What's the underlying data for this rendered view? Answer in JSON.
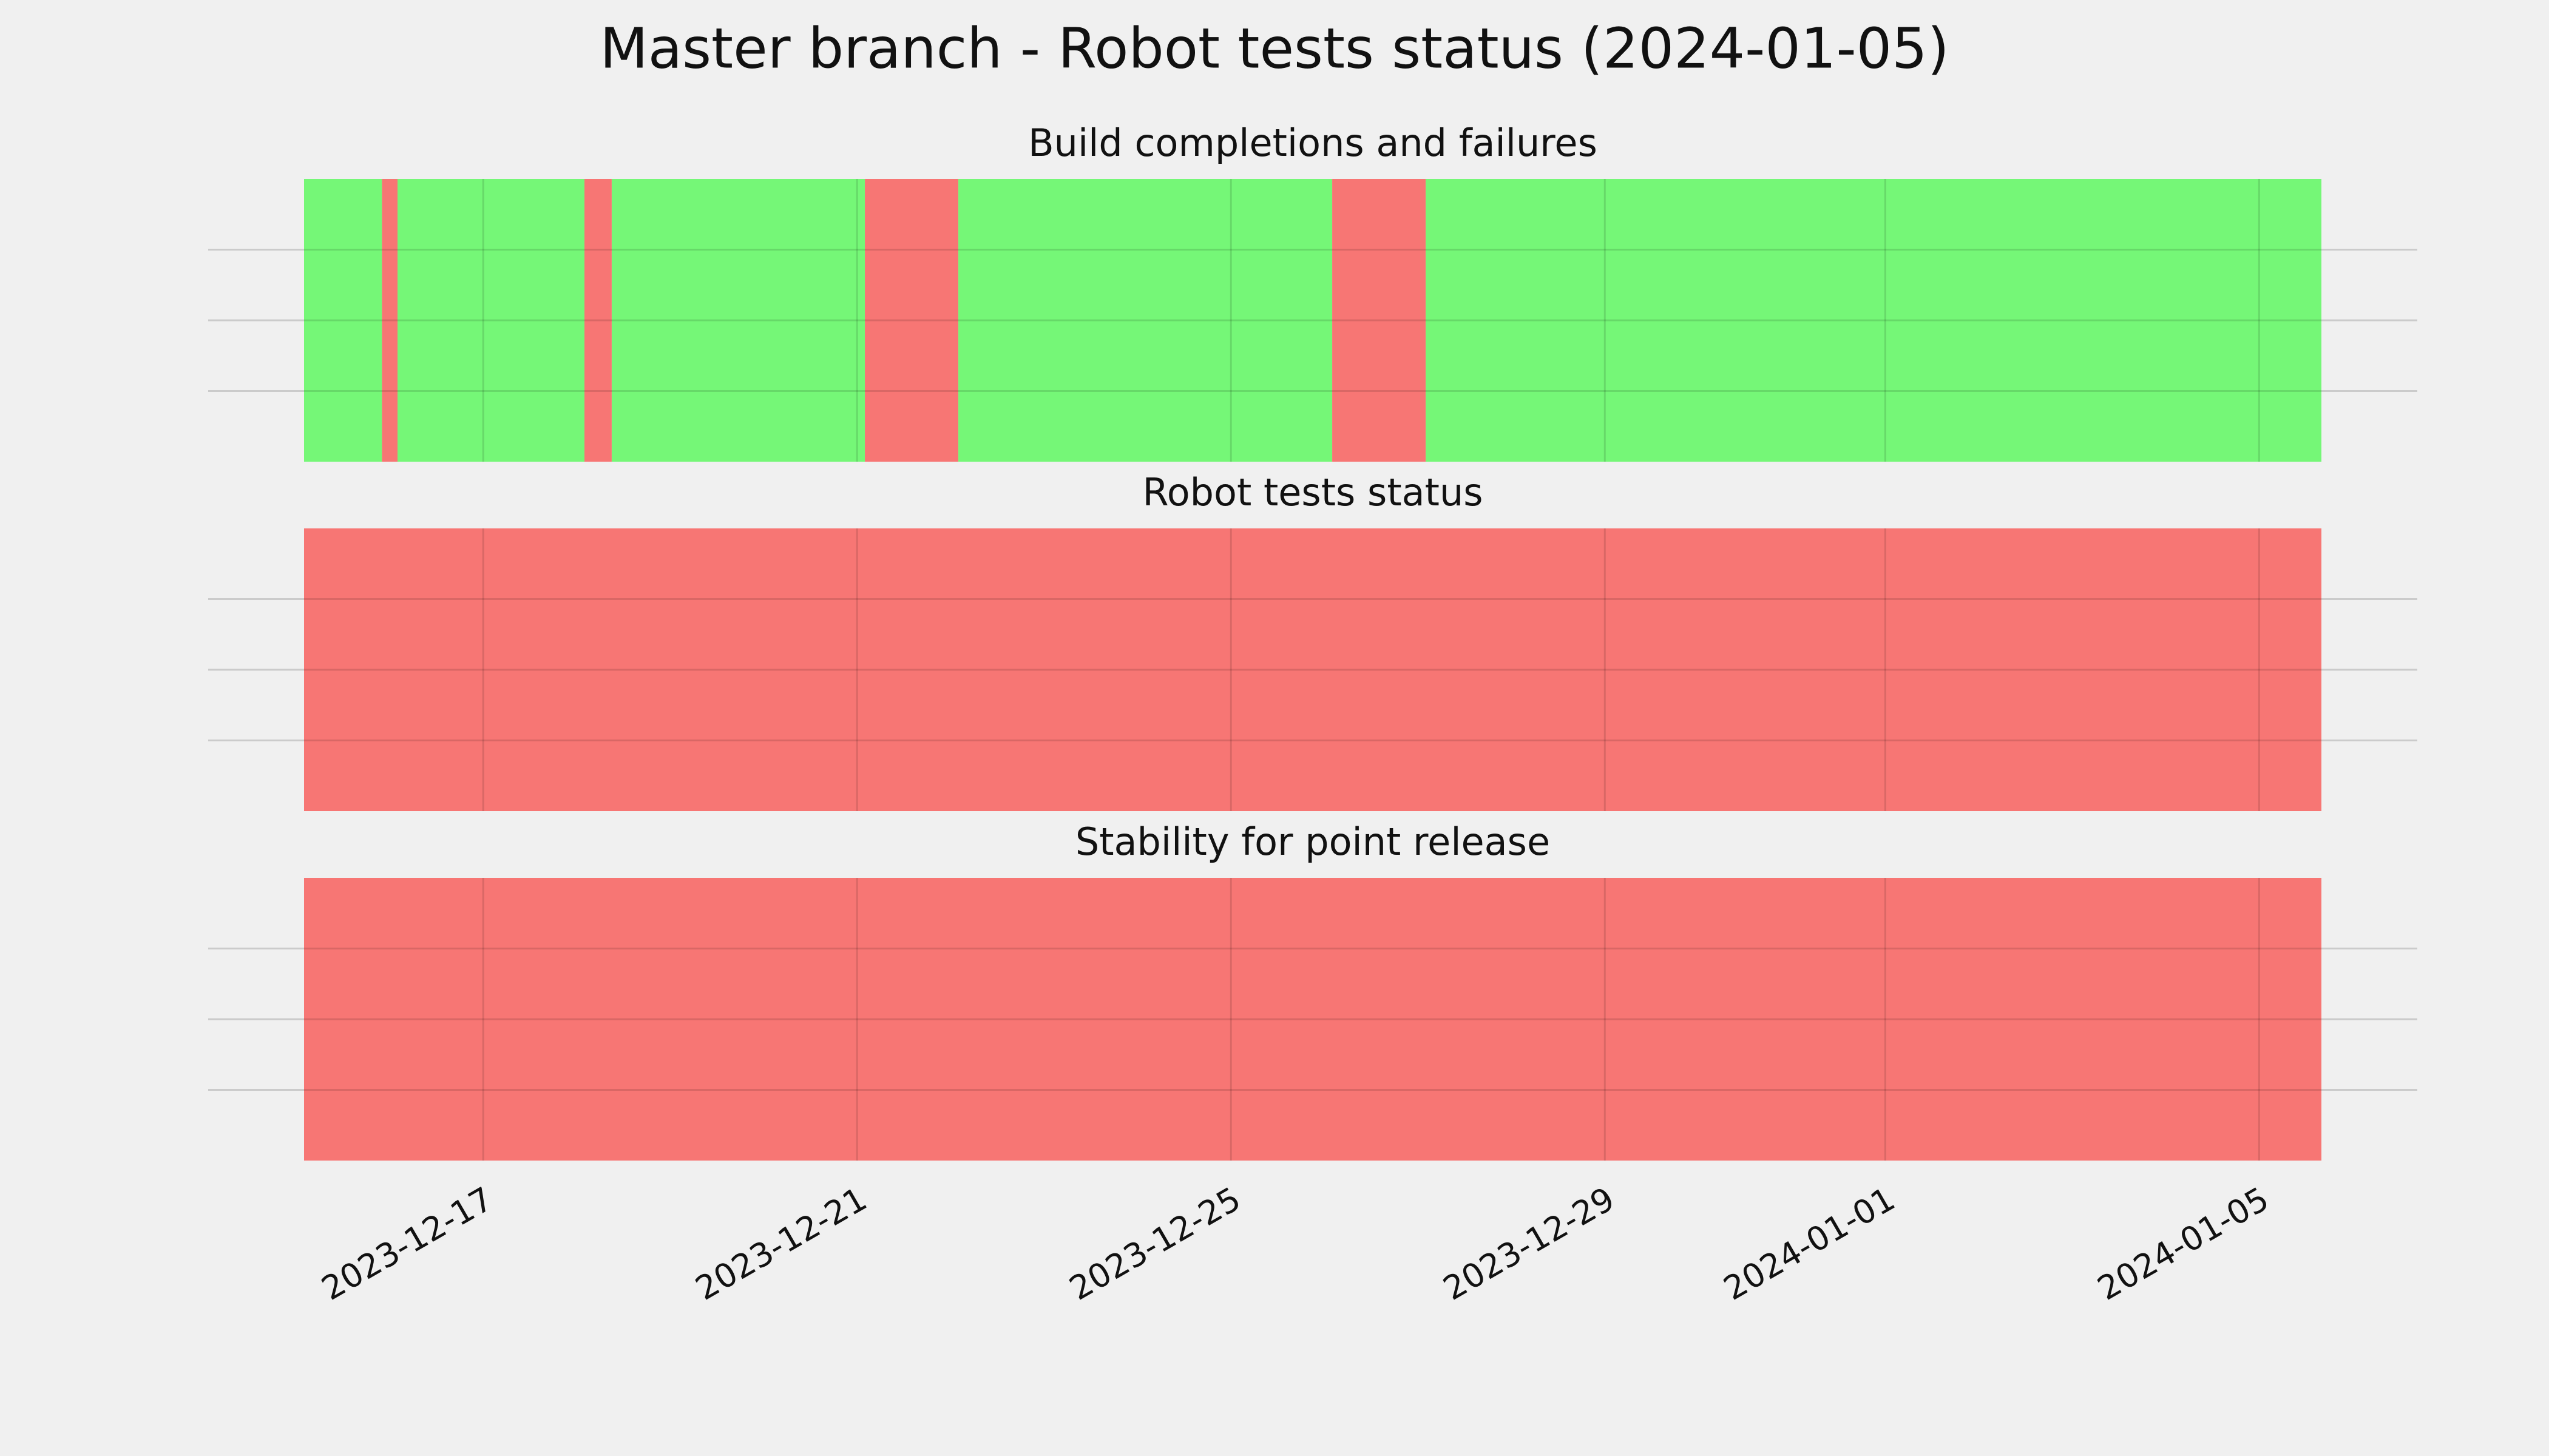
{
  "chart_data": {
    "type": "timeline",
    "title": "Master branch - Robot tests status (2024-01-05)",
    "xlim": [
      "2023-12-15T02:00",
      "2024-01-05T16:00"
    ],
    "xticks": [
      "2023-12-17",
      "2023-12-21",
      "2023-12-25",
      "2023-12-29",
      "2024-01-01",
      "2024-01-05"
    ],
    "grid": true,
    "panels": [
      {
        "title": "Build completions and failures",
        "segments": [
          {
            "start": "2023-12-15T02:00",
            "end": "2023-12-15T22:00",
            "color": "#75f777"
          },
          {
            "start": "2023-12-15T22:00",
            "end": "2023-12-16T02:00",
            "color": "#f77674"
          },
          {
            "start": "2023-12-16T02:00",
            "end": "2023-12-18T02:00",
            "color": "#75f777"
          },
          {
            "start": "2023-12-18T02:00",
            "end": "2023-12-18T09:00",
            "color": "#f77674"
          },
          {
            "start": "2023-12-18T09:00",
            "end": "2023-12-21T02:00",
            "color": "#75f777"
          },
          {
            "start": "2023-12-21T02:00",
            "end": "2023-12-22T02:00",
            "color": "#f77674"
          },
          {
            "start": "2023-12-22T02:00",
            "end": "2023-12-26T02:00",
            "color": "#75f777"
          },
          {
            "start": "2023-12-26T02:00",
            "end": "2023-12-27T02:00",
            "color": "#f77674"
          },
          {
            "start": "2023-12-27T02:00",
            "end": "2024-01-05T16:00",
            "color": "#75f777"
          }
        ]
      },
      {
        "title": "Robot tests status",
        "segments": [
          {
            "start": "2023-12-15T02:00",
            "end": "2024-01-05T16:00",
            "color": "#f77674"
          }
        ]
      },
      {
        "title": "Stability for point release",
        "segments": [
          {
            "start": "2023-12-15T02:00",
            "end": "2024-01-05T16:00",
            "color": "#f77674"
          }
        ]
      }
    ]
  }
}
